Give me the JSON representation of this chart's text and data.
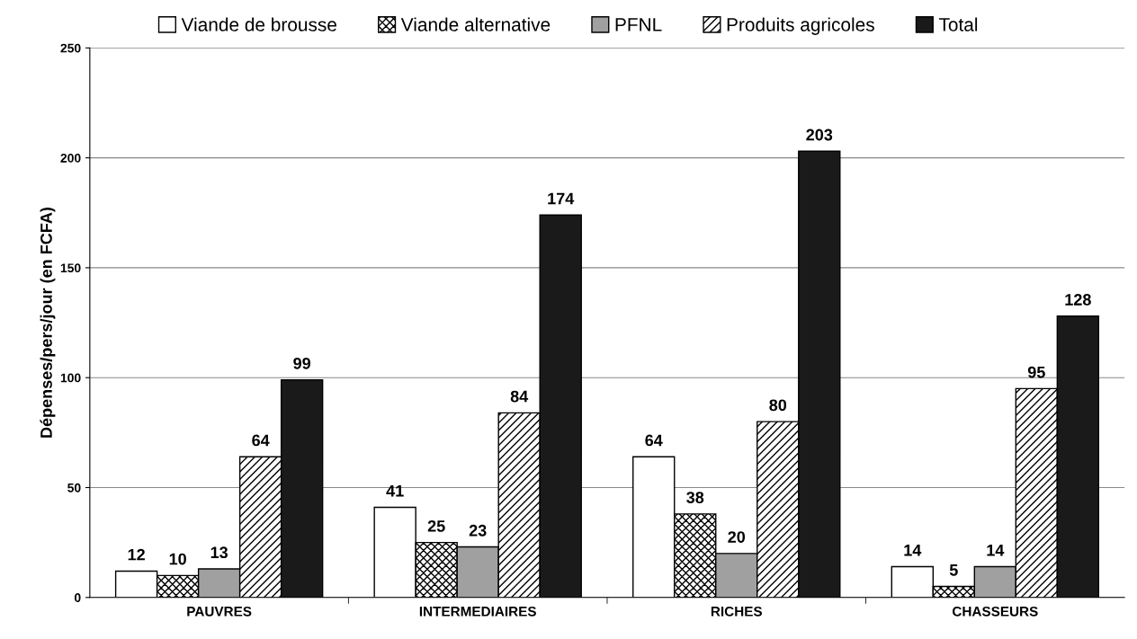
{
  "chart_data": {
    "type": "bar",
    "ylabel": "Dépenses/pers/jour (en FCFA)",
    "categories": [
      "PAUVRES",
      "INTERMEDIAIRES",
      "RICHES",
      "CHASSEURS"
    ],
    "series": [
      {
        "name": "Viande de brousse",
        "color": "#ffffff",
        "values": [
          12,
          41,
          64,
          14
        ]
      },
      {
        "name": "Viande alternative",
        "color": "#000000",
        "values": [
          10,
          25,
          38,
          5
        ]
      },
      {
        "name": "PFNL",
        "color": "#a0a0a0",
        "values": [
          13,
          23,
          20,
          14
        ]
      },
      {
        "name": "Produits agricoles",
        "color": "#000000",
        "values": [
          64,
          84,
          80,
          95
        ]
      },
      {
        "name": "Total",
        "color": "#1a1a1a",
        "values": [
          99,
          174,
          203,
          128
        ]
      }
    ],
    "ylim": [
      0,
      250
    ],
    "yticks": [
      0,
      50,
      100,
      150,
      200,
      250
    ],
    "grid": "y",
    "legend": "top",
    "data_labels": true
  }
}
